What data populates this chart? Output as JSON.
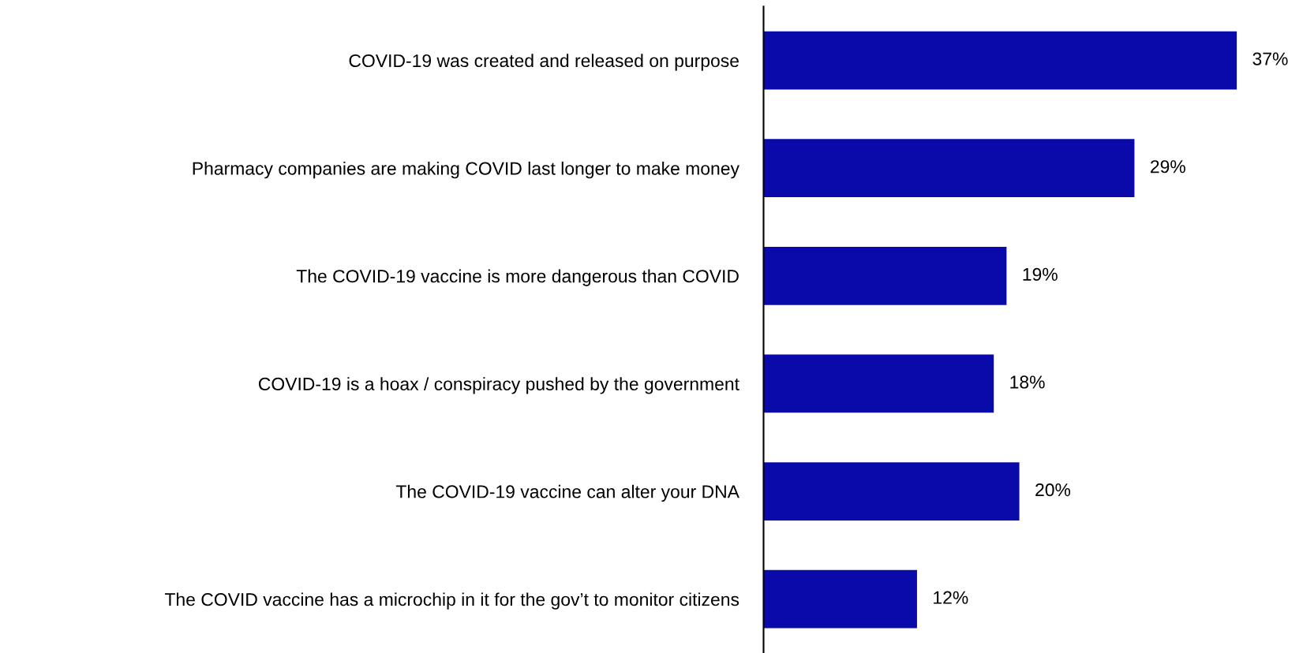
{
  "chart_data": {
    "type": "bar",
    "orientation": "horizontal",
    "categories": [
      "COVID-19 was created and released on purpose",
      "Pharmacy companies are making COVID last longer to make money",
      "The COVID-19 vaccine is more dangerous than COVID",
      "COVID-19 is a hoax / conspiracy pushed by the government",
      "The COVID-19 vaccine can alter your DNA",
      "The COVID vaccine has a microchip in it for the gov’t to monitor citizens"
    ],
    "values": [
      37,
      29,
      19,
      18,
      20,
      12
    ],
    "value_labels": [
      "37%",
      "29%",
      "19%",
      "18%",
      "20%",
      "12%"
    ],
    "color": "#0a0aaa",
    "grid": false,
    "legend": false,
    "tick_labels": "y"
  }
}
